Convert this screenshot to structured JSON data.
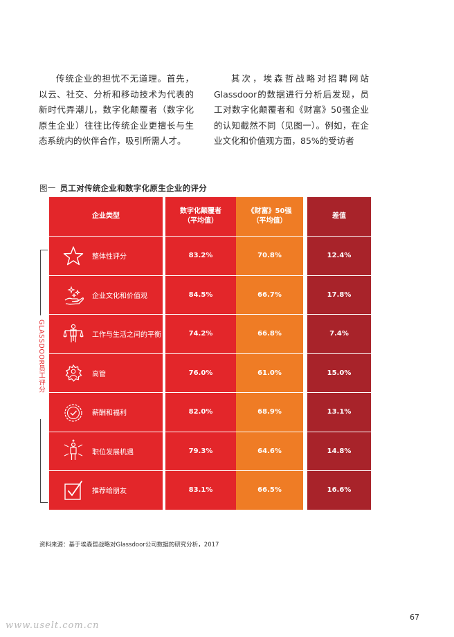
{
  "body_text": {
    "left": "传统企业的担忧不无道理。首先，以云、社交、分析和移动技术为代表的新时代弄潮儿，数字化颠覆者（数字化原生企业）往往比传统企业更擅长与生态系统内的伙伴合作，吸引所需人才。",
    "right": "其次，埃森哲战略对招聘网站Glassdoor的数据进行分析后发现，员工对数字化颠覆者和《财富》50强企业的认知截然不同（见图一）。例如，在企业文化和价值观方面，85%的受访者"
  },
  "figure": {
    "prefix": "图一",
    "title": "员工对传统企业和数字化原生企业的评分",
    "side_label": "GLASSDOOR员工评分",
    "headers": {
      "category": "企业类型",
      "disruptors": "数字化颠覆者\n（平均值）",
      "fortune": "《财富》50强\n（平均值）",
      "diff": "差值"
    },
    "rows": [
      {
        "icon": "star-icon",
        "label": "整体性评分",
        "disruptors": "83.2%",
        "fortune": "70.8%",
        "diff": "12.4%"
      },
      {
        "icon": "hand-sparkle-icon",
        "label": "企业文化和价值观",
        "disruptors": "84.5%",
        "fortune": "66.7%",
        "diff": "17.8%"
      },
      {
        "icon": "balance-person-icon",
        "label": "工作与生活之间的平衡",
        "disruptors": "74.2%",
        "fortune": "66.8%",
        "diff": "7.4%"
      },
      {
        "icon": "gear-person-icon",
        "label": "高管",
        "disruptors": "76.0%",
        "fortune": "61.0%",
        "diff": "15.0%"
      },
      {
        "icon": "badge-check-icon",
        "label": "薪酬和福利",
        "disruptors": "82.0%",
        "fortune": "68.9%",
        "diff": "13.1%"
      },
      {
        "icon": "person-arrows-icon",
        "label": "职位发展机遇",
        "disruptors": "79.3%",
        "fortune": "64.6%",
        "diff": "14.8%"
      },
      {
        "icon": "checkbox-icon",
        "label": "推荐给朋友",
        "disruptors": "83.1%",
        "fortune": "66.5%",
        "diff": "16.6%"
      }
    ],
    "colors": {
      "red": "#e3262a",
      "orange": "#ef7c25",
      "dark_red": "#a8232a"
    }
  },
  "source": "资料来源：基于埃森哲战略对Glassdoor公司数据的研究分析，2017",
  "page_number": "67",
  "watermark": "www.uselt.com.cn"
}
